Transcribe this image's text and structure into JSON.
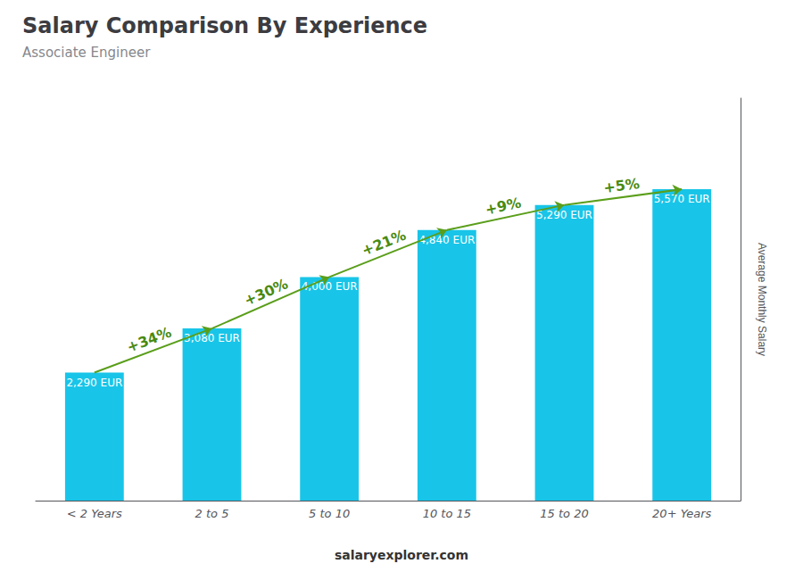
{
  "chart_data": {
    "type": "bar",
    "title": "Salary Comparison By Experience",
    "subtitle": "Associate Engineer",
    "ylabel": "Average Monthly Salary",
    "categories": [
      "< 2 Years",
      "2 to 5",
      "5 to 10",
      "10 to 15",
      "15 to 20",
      "20+ Years"
    ],
    "values": [
      2290,
      3080,
      4000,
      4840,
      5290,
      5570
    ],
    "value_labels": [
      "2,290 EUR",
      "3,080 EUR",
      "4,000 EUR",
      "4,840 EUR",
      "5,290 EUR",
      "5,570 EUR"
    ],
    "data_labels": true,
    "color": "#18c5e8",
    "ylim": [
      0,
      7200
    ],
    "grid": false,
    "tick_labels": "x",
    "annotations": [
      {
        "text": "+34%",
        "from": "< 2 Years",
        "to": "2 to 5"
      },
      {
        "text": "+30%",
        "from": "2 to 5",
        "to": "5 to 10"
      },
      {
        "text": "+21%",
        "from": "5 to 10",
        "to": "10 to 15"
      },
      {
        "text": "+9%",
        "from": "10 to 15",
        "to": "15 to 20"
      },
      {
        "text": "+5%",
        "from": "15 to 20",
        "to": "20+ Years"
      },
      {
        "text": "salaryexplorer.com"
      }
    ]
  }
}
